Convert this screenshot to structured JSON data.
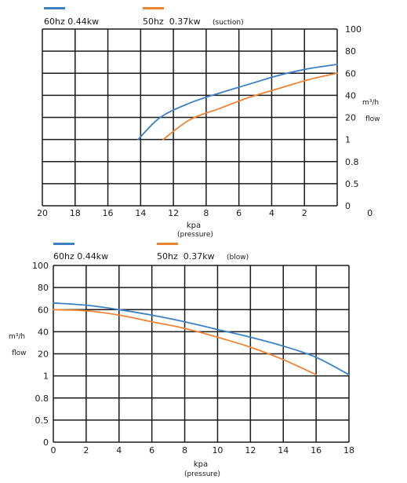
{
  "chart_data": [
    {
      "type": "line",
      "title": "",
      "legend": [
        {
          "label": "60hz 0.44kw",
          "note": "",
          "color": "#3b82c4"
        },
        {
          "label": "50hz  0.37kw",
          "note": "(suction)",
          "color": "#ed8333"
        }
      ],
      "legend_placement": "top-left",
      "xlabel": "kpa",
      "xlabel2": "(pressure)",
      "ylabel_unit": "m³/h",
      "ylabel": "flow",
      "x_ticks": [
        "20",
        "18",
        "16",
        "14",
        "12",
        "8",
        "6",
        "4",
        "2",
        "0"
      ],
      "x_reversed": true,
      "xlim": [
        0,
        20
      ],
      "y_ticks": [
        "0",
        "0.5",
        "0.8",
        "1",
        "20",
        "40",
        "60",
        "80",
        "100"
      ],
      "y_axis_side": "right",
      "grid": true,
      "series": [
        {
          "name": "60hz 0.44kw",
          "color": "#3b82c4",
          "x": [
            13.5,
            12,
            10,
            8,
            6,
            4,
            2,
            0
          ],
          "y": [
            1,
            20,
            33,
            42,
            50,
            58,
            64,
            68
          ]
        },
        {
          "name": "50hz  0.37kw",
          "color": "#ed8333",
          "x": [
            11.8,
            10,
            8,
            6,
            4,
            2,
            0
          ],
          "y": [
            1,
            18,
            28,
            38,
            46,
            54,
            60
          ]
        }
      ]
    },
    {
      "type": "line",
      "title": "",
      "legend": [
        {
          "label": "60hz 0.44kw",
          "note": "",
          "color": "#3b82c4"
        },
        {
          "label": "50hz  0.37kw",
          "note": "(blow)",
          "color": "#ed8333"
        }
      ],
      "legend_placement": "top-left",
      "xlabel": "kpa",
      "xlabel2": "(pressure)",
      "ylabel_unit": "m³/h",
      "ylabel": "flow",
      "x_ticks": [
        "0",
        "2",
        "4",
        "6",
        "8",
        "10",
        "12",
        "14",
        "16",
        "18"
      ],
      "x_reversed": false,
      "xlim": [
        0,
        18
      ],
      "y_ticks": [
        "0",
        "0.5",
        "0.8",
        "1",
        "20",
        "40",
        "60",
        "80",
        "100"
      ],
      "y_axis_side": "left",
      "grid": true,
      "series": [
        {
          "name": "60hz 0.44kw",
          "color": "#3b82c4",
          "x": [
            0,
            2,
            4,
            6,
            8,
            10,
            12,
            14,
            16,
            18
          ],
          "y": [
            66,
            64,
            60,
            55,
            49,
            42,
            35,
            27,
            17,
            2
          ]
        },
        {
          "name": "50hz  0.37kw",
          "color": "#ed8333",
          "x": [
            0,
            2,
            4,
            6,
            8,
            10,
            12,
            14,
            16
          ],
          "y": [
            60,
            59,
            55,
            49,
            43,
            35,
            26,
            15,
            2
          ]
        }
      ]
    }
  ]
}
